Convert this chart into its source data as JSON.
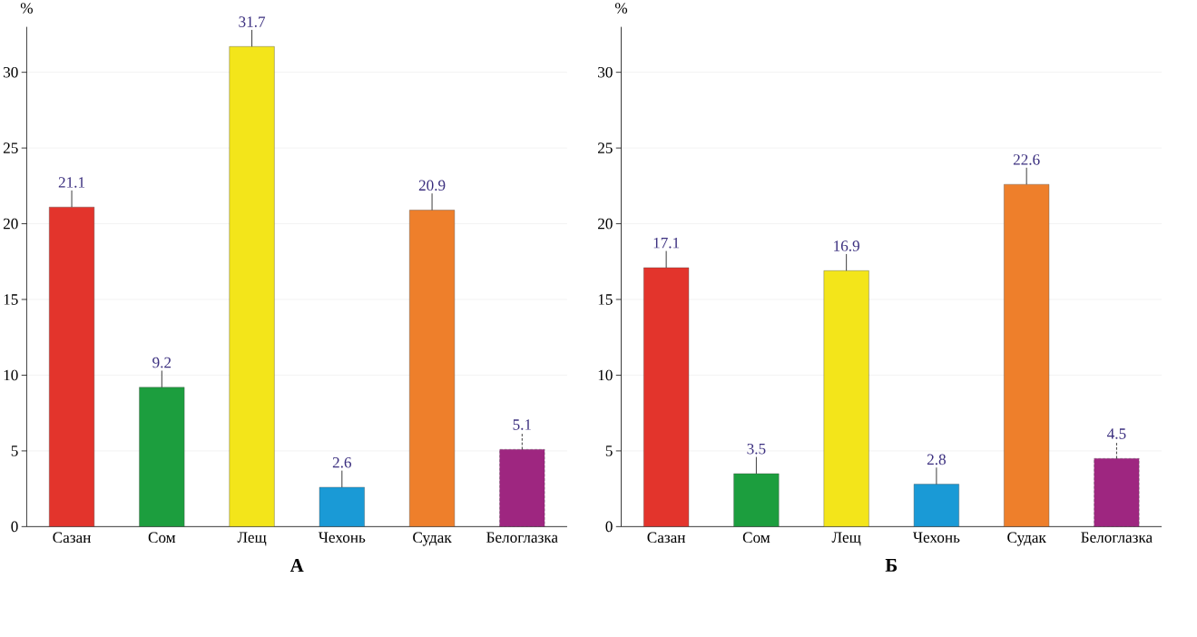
{
  "chart_data": [
    {
      "type": "bar",
      "title": "А",
      "ylabel": "%",
      "categories": [
        "Сазан",
        "Сом",
        "Лещ",
        "Чехонь",
        "Судак",
        "Белоглазка"
      ],
      "values": [
        21.1,
        9.2,
        31.7,
        2.6,
        20.9,
        5.1
      ],
      "colors": [
        "#e3342c",
        "#1c9e3e",
        "#f3e51a",
        "#1a9ad6",
        "#ee7f2b",
        "#9e2680"
      ],
      "errors": [
        [
          21.1,
          22.2
        ],
        [
          9.2,
          10.3
        ],
        [
          31.7,
          32.8
        ],
        [
          2.6,
          3.7
        ],
        [
          20.9,
          22.0
        ],
        [
          5.1,
          6.2
        ]
      ],
      "data_labels": true,
      "ylim": [
        0,
        33
      ],
      "yticks": [
        0,
        5,
        10,
        15,
        20,
        25,
        30
      ],
      "grid": "y"
    },
    {
      "type": "bar",
      "title": "Б",
      "ylabel": "%",
      "categories": [
        "Сазан",
        "Сом",
        "Лещ",
        "Чехонь",
        "Судак",
        "Белоглазка"
      ],
      "values": [
        17.1,
        3.5,
        16.9,
        2.8,
        22.6,
        4.5
      ],
      "colors": [
        "#e3342c",
        "#1c9e3e",
        "#f3e51a",
        "#1a9ad6",
        "#ee7f2b",
        "#9e2680"
      ],
      "errors": [
        [
          17.1,
          18.2
        ],
        [
          3.5,
          4.6
        ],
        [
          16.9,
          18.0
        ],
        [
          2.8,
          3.9
        ],
        [
          22.6,
          23.7
        ],
        [
          4.5,
          5.6
        ]
      ],
      "data_labels": true,
      "ylim": [
        0,
        33
      ],
      "yticks": [
        0,
        5,
        10,
        15,
        20,
        25,
        30
      ],
      "grid": "y"
    }
  ]
}
